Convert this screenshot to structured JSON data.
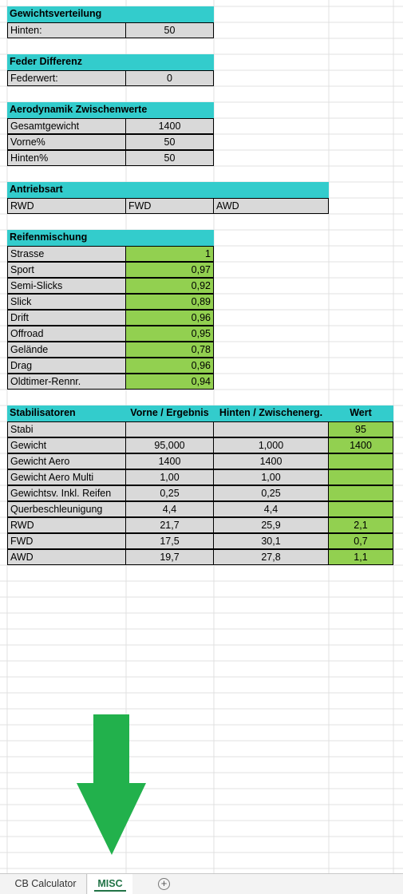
{
  "sections": {
    "gewichtsverteilung": {
      "header": "Gewichtsverteilung",
      "label": "Hinten:",
      "value": "50"
    },
    "feder": {
      "header": "Feder Differenz",
      "label": "Federwert:",
      "value": "0"
    },
    "aero": {
      "header": "Aerodynamik Zwischenwerte",
      "rows": [
        {
          "label": "Gesamtgewicht",
          "value": "1400"
        },
        {
          "label": "Vorne%",
          "value": "50"
        },
        {
          "label": "Hinten%",
          "value": "50"
        }
      ]
    },
    "antrieb": {
      "header": "Antriebsart",
      "options": [
        "RWD",
        "FWD",
        "AWD"
      ]
    },
    "reifen": {
      "header": "Reifenmischung",
      "rows": [
        {
          "label": "Strasse",
          "value": "1"
        },
        {
          "label": "Sport",
          "value": "0,97"
        },
        {
          "label": "Semi-Slicks",
          "value": "0,92"
        },
        {
          "label": "Slick",
          "value": "0,89"
        },
        {
          "label": "Drift",
          "value": "0,96"
        },
        {
          "label": "Offroad",
          "value": "0,95"
        },
        {
          "label": "Gelände",
          "value": "0,78"
        },
        {
          "label": "Drag",
          "value": "0,96"
        },
        {
          "label": "Oldtimer-Rennr.",
          "value": "0,94"
        }
      ]
    },
    "stabi": {
      "headers": [
        "Stabilisatoren",
        "Vorne / Ergebnis",
        "Hinten / Zwischenerg.",
        "Wert"
      ],
      "rows": [
        {
          "label": "Stabi",
          "vorne": "",
          "hinten": "",
          "wert": "95"
        },
        {
          "label": "Gewicht",
          "vorne": "95,000",
          "hinten": "1,000",
          "wert": "1400"
        },
        {
          "label": "Gewicht Aero",
          "vorne": "1400",
          "hinten": "1400",
          "wert": ""
        },
        {
          "label": "Gewicht Aero Multi",
          "vorne": "1,00",
          "hinten": "1,00",
          "wert": ""
        },
        {
          "label": "Gewichtsv. Inkl. Reifen",
          "vorne": "0,25",
          "hinten": "0,25",
          "wert": ""
        },
        {
          "label": "Querbeschleunigung",
          "vorne": "4,4",
          "hinten": "4,4",
          "wert": ""
        },
        {
          "label": "RWD",
          "vorne": "21,7",
          "hinten": "25,9",
          "wert": "2,1"
        },
        {
          "label": "FWD",
          "vorne": "17,5",
          "hinten": "30,1",
          "wert": "0,7"
        },
        {
          "label": "AWD",
          "vorne": "19,7",
          "hinten": "27,8",
          "wert": "1,1"
        }
      ]
    }
  },
  "arrow": {
    "color": "#22b14c",
    "direction": "down"
  },
  "colors": {
    "header": "#33cccc",
    "input_gray": "#d9d9d9",
    "result_green": "#92d050",
    "active_tab": "#217346"
  },
  "sheet_tabs": [
    {
      "label": "CB Calculator",
      "active": false
    },
    {
      "label": "MISC",
      "active": true
    }
  ],
  "add_sheet_icon": "plus-circle-icon"
}
